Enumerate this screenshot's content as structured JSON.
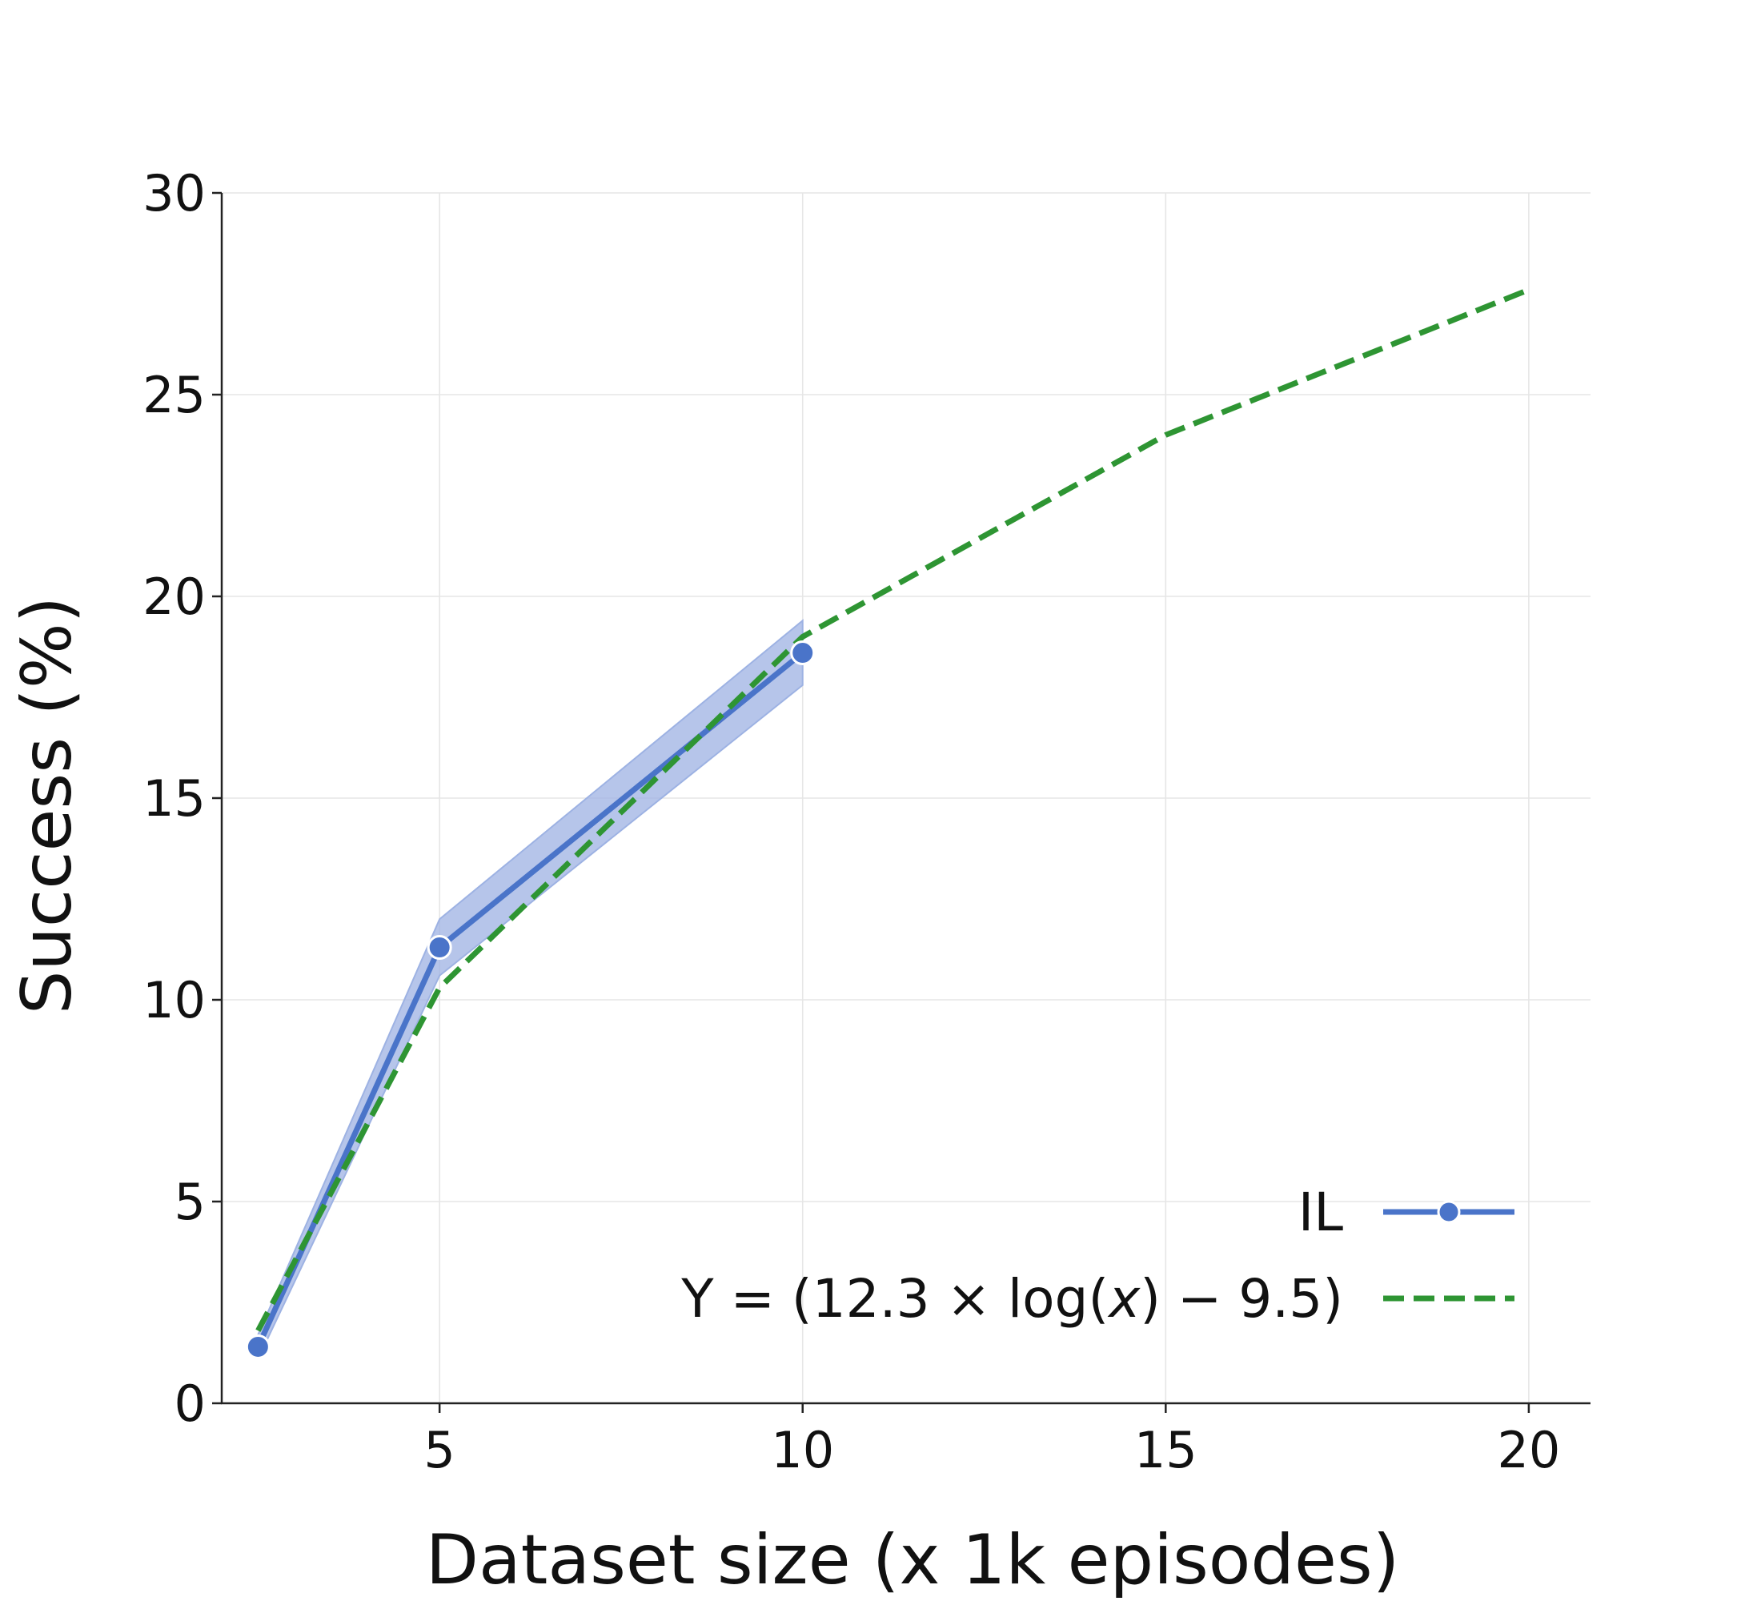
{
  "chart_data": {
    "type": "line",
    "title": "",
    "xlabel": "Dataset size (x 1k episodes)",
    "ylabel": "Success (%)",
    "xlim": [
      2.0,
      20.85
    ],
    "ylim": [
      0,
      30
    ],
    "xticks": [
      5,
      10,
      15,
      20
    ],
    "yticks": [
      0,
      5,
      10,
      15,
      20,
      25,
      30
    ],
    "grid": true,
    "legend_position": "bottom-right",
    "colors": {
      "il": "#4a74c9",
      "il_band": "#9db2e3",
      "fit": "#2e9533",
      "grid": "#e6e6e6",
      "axis": "#222222"
    },
    "series": [
      {
        "name": "IL",
        "style": "solid-with-markers",
        "x": [
          2.5,
          5,
          10
        ],
        "y": [
          1.4,
          11.3,
          18.6
        ],
        "band_lower": [
          1.1,
          10.6,
          17.8
        ],
        "band_upper": [
          1.7,
          12.0,
          19.4
        ]
      },
      {
        "name": "Y = (12.3 × log(x) − 9.5)",
        "style": "dashed",
        "x": [
          2.5,
          5,
          10,
          15,
          20
        ],
        "y": [
          1.8,
          10.3,
          19.0,
          24.0,
          27.6
        ]
      }
    ],
    "legend": [
      {
        "label": "IL",
        "series": 0
      },
      {
        "label_parts": [
          "Y = (12.3",
          " × log(",
          "x",
          ") − 9.5)"
        ],
        "series": 1
      }
    ]
  }
}
